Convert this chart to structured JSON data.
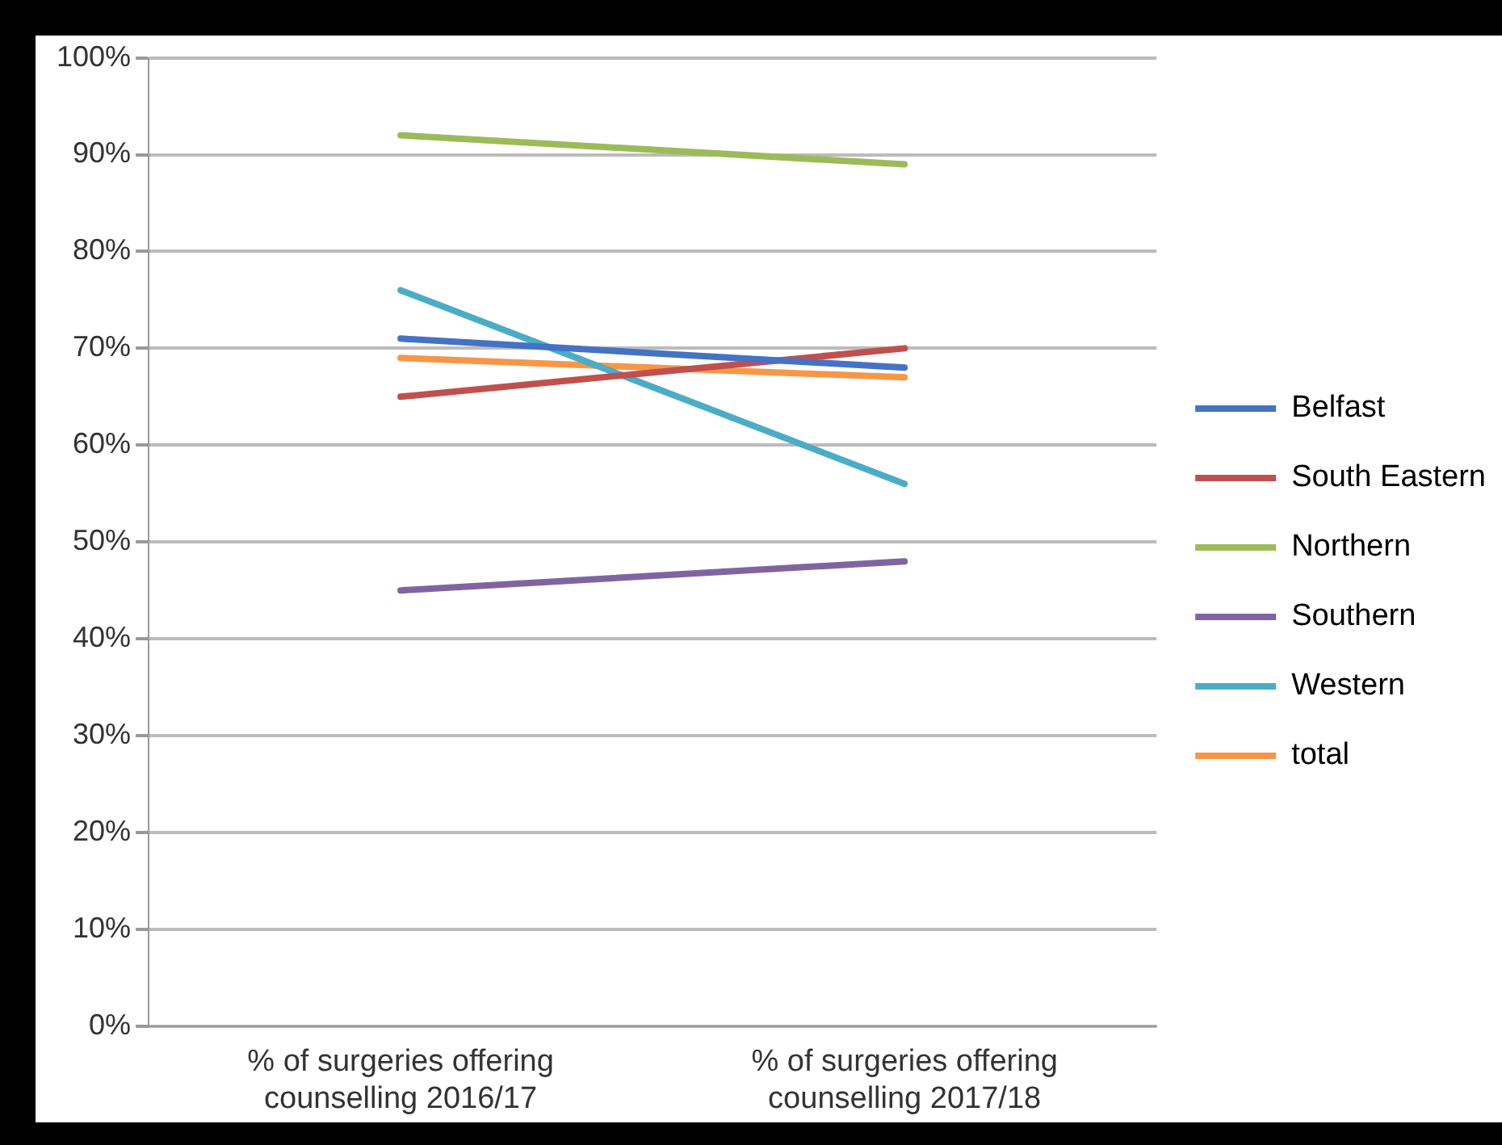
{
  "chart_data": {
    "type": "line",
    "categories": [
      "% of surgeries offering counselling 2016/17",
      "% of surgeries offering counselling 2017/18"
    ],
    "series": [
      {
        "name": "Belfast",
        "color": "#4472c4",
        "values": [
          71,
          68
        ]
      },
      {
        "name": "South Eastern",
        "color": "#c0504d",
        "values": [
          65,
          70
        ]
      },
      {
        "name": "Northern",
        "color": "#9bbb59",
        "values": [
          92,
          89
        ]
      },
      {
        "name": "Southern",
        "color": "#8064a2",
        "values": [
          45,
          48
        ]
      },
      {
        "name": "Western",
        "color": "#4bacc6",
        "values": [
          76,
          56
        ]
      },
      {
        "name": "total",
        "color": "#f79646",
        "values": [
          69,
          67
        ]
      }
    ],
    "ylim": [
      0,
      100
    ],
    "yticks": [
      {
        "value": 0,
        "label": "0%"
      },
      {
        "value": 10,
        "label": "10%"
      },
      {
        "value": 20,
        "label": "20%"
      },
      {
        "value": 30,
        "label": "30%"
      },
      {
        "value": 40,
        "label": "40%"
      },
      {
        "value": 50,
        "label": "50%"
      },
      {
        "value": 60,
        "label": "60%"
      },
      {
        "value": 70,
        "label": "70%"
      },
      {
        "value": 80,
        "label": "80%"
      },
      {
        "value": 90,
        "label": "90%"
      },
      {
        "value": 100,
        "label": "100%"
      }
    ],
    "grid": "y",
    "legend": "right",
    "marker": "none",
    "line_style": "solid"
  }
}
